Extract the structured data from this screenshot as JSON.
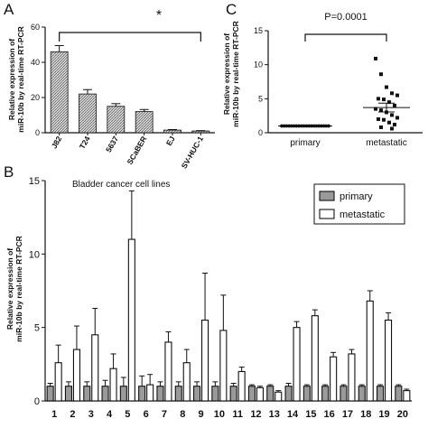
{
  "colors": {
    "primary_fill": "#9a9a9a",
    "metastatic_fill": "#ffffff",
    "hatch_fill": "#c8c8c8",
    "ink": "#111111"
  },
  "panels": {
    "A": {
      "letter": "A"
    },
    "B": {
      "letter": "B"
    },
    "C": {
      "letter": "C"
    }
  },
  "chart_data": [
    {
      "panel": "A",
      "type": "bar",
      "categories": [
        "J82",
        "T24",
        "5637",
        "SCaBER",
        "EJ",
        "SV-HUC-1"
      ],
      "values": [
        46,
        22,
        15,
        12,
        1.5,
        1
      ],
      "errors": [
        3.5,
        2.5,
        1.5,
        1.2,
        0.3,
        0.2
      ],
      "ylabel": [
        "Relative  expression of",
        "miR-10b by real-time RT-PCR"
      ],
      "ylim": [
        0,
        60
      ],
      "yticks": [
        0,
        20,
        40,
        60
      ],
      "annotation": "*",
      "bracket": {
        "from": "J82",
        "to": "SV-HUC-1"
      },
      "grid": false
    },
    {
      "panel": "C",
      "type": "scatter",
      "categories": [
        "primary",
        "metastatic"
      ],
      "ylabel": [
        "Relative  expression of",
        "miR-10b by real-time RT-PCR"
      ],
      "ylim": [
        0,
        15
      ],
      "yticks": [
        0,
        5,
        10,
        15
      ],
      "annotation": "P=0.0001",
      "series": [
        {
          "group": "primary",
          "values": [
            1,
            1,
            1,
            1,
            1,
            1,
            1,
            1,
            1,
            1,
            1,
            1,
            1,
            1,
            1,
            1,
            1,
            1,
            1,
            1
          ],
          "mean": 1
        },
        {
          "group": "metastatic",
          "values": [
            10.9,
            8.6,
            6.7,
            5.8,
            5.5,
            5.0,
            4.9,
            4.5,
            4.0,
            3.5,
            3.3,
            3.0,
            2.6,
            2.2,
            2.0,
            1.9,
            1.5,
            1.2,
            0.8,
            0.6
          ],
          "mean": 3.7,
          "sem": 0.65
        }
      ],
      "grid": false
    },
    {
      "panel": "B",
      "type": "bar",
      "title": "Bladder cancer cell lines",
      "categories": [
        "1",
        "2",
        "3",
        "4",
        "5",
        "6",
        "7",
        "8",
        "9",
        "10",
        "11",
        "12",
        "13",
        "14",
        "15",
        "16",
        "17",
        "18",
        "19",
        "20"
      ],
      "series": [
        {
          "name": "primary",
          "values": [
            1,
            1,
            1,
            1,
            1,
            1,
            1,
            1,
            1,
            1,
            1,
            1,
            1,
            1,
            1,
            1,
            1,
            1,
            1,
            1
          ],
          "errors": [
            0.2,
            0.3,
            0.3,
            0.4,
            0.6,
            0.7,
            0.3,
            0.3,
            0.3,
            0.3,
            0.2,
            0.1,
            0.1,
            0.2,
            0.1,
            0.1,
            0.1,
            0.1,
            0.1,
            0.1
          ]
        },
        {
          "name": "metastatic",
          "values": [
            2.6,
            3.5,
            4.5,
            2.2,
            11,
            1.1,
            4.0,
            2.6,
            5.5,
            4.8,
            2.0,
            0.9,
            0.6,
            5.0,
            5.8,
            3.0,
            3.2,
            6.8,
            5.5,
            0.7
          ],
          "errors": [
            1.2,
            1.6,
            1.8,
            1.0,
            3.3,
            0.7,
            0.7,
            0.9,
            3.2,
            2.4,
            0.3,
            0.1,
            0.1,
            0.4,
            0.4,
            0.3,
            0.3,
            0.7,
            0.5,
            0.1
          ]
        }
      ],
      "ylabel": [
        "Relative  expression of",
        "miR-10b by real-time RT-PCR"
      ],
      "ylim": [
        0,
        15
      ],
      "yticks": [
        0,
        5,
        10,
        15
      ],
      "legend": {
        "position": "top-right",
        "entries": [
          "primary",
          "metastatic"
        ]
      },
      "grid": false
    }
  ]
}
